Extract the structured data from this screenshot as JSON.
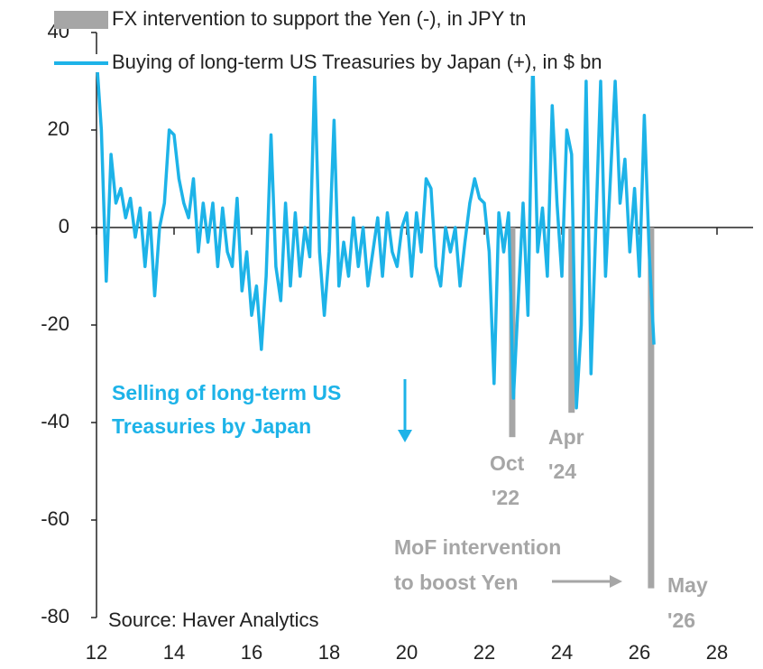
{
  "chart_data": {
    "type": "line",
    "x": [
      12,
      12.125,
      12.25,
      12.375,
      12.5,
      12.625,
      12.75,
      12.875,
      13,
      13.125,
      13.25,
      13.375,
      13.5,
      13.625,
      13.75,
      13.875,
      14,
      14.125,
      14.25,
      14.375,
      14.5,
      14.625,
      14.75,
      14.875,
      15,
      15.125,
      15.25,
      15.375,
      15.5,
      15.625,
      15.75,
      15.875,
      16,
      16.125,
      16.25,
      16.375,
      16.5,
      16.625,
      16.75,
      16.875,
      17,
      17.125,
      17.25,
      17.375,
      17.5,
      17.625,
      17.75,
      17.875,
      18,
      18.125,
      18.25,
      18.375,
      18.5,
      18.625,
      18.75,
      18.875,
      19,
      19.125,
      19.25,
      19.375,
      19.5,
      19.625,
      19.75,
      19.875,
      20,
      20.125,
      20.25,
      20.375,
      20.5,
      20.625,
      20.75,
      20.875,
      21,
      21.125,
      21.25,
      21.375,
      21.5,
      21.625,
      21.75,
      21.875,
      22,
      22.125,
      22.25,
      22.375,
      22.5,
      22.625,
      22.75,
      22.875,
      23,
      23.125,
      23.25,
      23.375,
      23.5,
      23.625,
      23.75,
      23.875,
      24,
      24.125,
      24.25,
      24.375,
      24.5,
      24.625,
      24.75,
      24.875,
      25,
      25.125,
      25.25,
      25.375,
      25.5,
      25.625,
      25.75,
      25.875,
      26,
      26.125,
      26.25,
      26.375
    ],
    "series": [
      {
        "name": "FX intervention to support the Yen (-), in JPY tn",
        "color": "#a6a6a6",
        "kind": "bar",
        "x": [
          22.72,
          24.25,
          26.3
        ],
        "values": [
          -43,
          -38,
          -74
        ]
      },
      {
        "name": "Buying of long-term US Treasuries by Japan (+), in $ bn",
        "color": "#1db3e8",
        "kind": "line",
        "values": [
          35,
          20,
          -11,
          15,
          5,
          8,
          2,
          6,
          -2,
          4,
          -8,
          3,
          -14,
          0,
          5,
          20,
          19,
          10,
          5,
          2,
          10,
          -5,
          5,
          -3,
          5,
          -8,
          4,
          -5,
          -8,
          6,
          -13,
          -5,
          -18,
          -12,
          -25,
          -10,
          19,
          -8,
          -15,
          5,
          -12,
          3,
          -10,
          0,
          -6,
          31,
          -5,
          -18,
          -5,
          22,
          -12,
          -3,
          -10,
          2,
          -8,
          0,
          -12,
          -5,
          2,
          -10,
          3,
          -5,
          -8,
          0,
          3,
          -10,
          3,
          -5,
          10,
          8,
          -8,
          -12,
          0,
          -5,
          0,
          -12,
          -3,
          5,
          10,
          6,
          5,
          -5,
          -32,
          3,
          -5,
          3,
          -35,
          -15,
          5,
          -18,
          35,
          -5,
          4,
          -10,
          25,
          5,
          -10,
          20,
          15,
          -37,
          -20,
          30,
          -30,
          0,
          30,
          -10,
          10,
          30,
          5,
          14,
          -5,
          8,
          -10,
          23,
          -5,
          -24
        ]
      }
    ],
    "xlim": [
      12,
      28
    ],
    "xticks": [
      12,
      14,
      16,
      18,
      20,
      22,
      24,
      26,
      28
    ],
    "ylim": [
      -80,
      40
    ],
    "yticks": [
      40,
      20,
      0,
      -20,
      -40,
      -60,
      -80
    ],
    "annotations": {
      "selling": [
        "Selling of long-term US",
        "Treasuries by Japan"
      ],
      "oct": [
        "Oct",
        "'22"
      ],
      "apr": [
        "Apr",
        "'24"
      ],
      "mof": [
        "MoF intervention",
        "to boost Yen"
      ],
      "may": [
        "May",
        "'26"
      ],
      "source": "Source: Haver Analytics"
    }
  }
}
